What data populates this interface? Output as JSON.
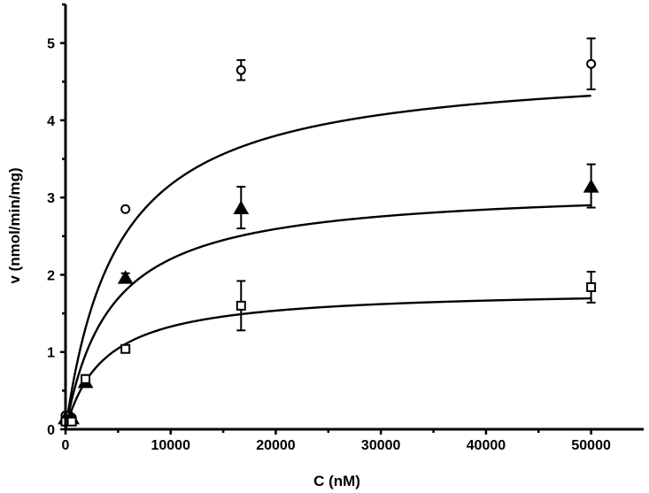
{
  "chart_data": {
    "type": "scatter",
    "title": "",
    "xlabel": "C (nM)",
    "ylabel": "v (nmol/min/mg)",
    "xlim": [
      0,
      55000
    ],
    "ylim": [
      0,
      5.5
    ],
    "x_ticks": [
      0,
      10000,
      20000,
      30000,
      40000,
      50000
    ],
    "y_ticks": [
      0,
      1,
      2,
      3,
      4,
      5
    ],
    "x_tick_labels": [
      "0",
      "10000",
      "20000",
      "30000",
      "40000",
      "50000"
    ],
    "y_tick_labels": [
      "0",
      "1",
      "2",
      "3",
      "4",
      "5"
    ],
    "grid": false,
    "legend": "none",
    "series": [
      {
        "marker": "circle-open",
        "points": [
          {
            "x": 0,
            "y": 0.18,
            "err": 0.0
          },
          {
            "x": 600,
            "y": 0.15,
            "err": 0.0
          },
          {
            "x": 1900,
            "y": 0.65,
            "err": 0.05
          },
          {
            "x": 5700,
            "y": 2.85,
            "err": 0.0
          },
          {
            "x": 16700,
            "y": 4.65,
            "err": 0.13
          },
          {
            "x": 50000,
            "y": 4.73,
            "err": 0.33
          }
        ],
        "fit": {
          "model": "michaelis-menten",
          "vmax": 4.75,
          "km": 5000
        }
      },
      {
        "marker": "triangle-filled",
        "points": [
          {
            "x": 0,
            "y": 0.15,
            "err": 0.0
          },
          {
            "x": 600,
            "y": 0.15,
            "err": 0.0
          },
          {
            "x": 1900,
            "y": 0.62,
            "err": 0.05
          },
          {
            "x": 5700,
            "y": 1.97,
            "err": 0.05
          },
          {
            "x": 16700,
            "y": 2.87,
            "err": 0.27
          },
          {
            "x": 50000,
            "y": 3.15,
            "err": 0.28
          }
        ],
        "fit": {
          "model": "michaelis-menten",
          "vmax": 3.15,
          "km": 4300
        }
      },
      {
        "marker": "square-open",
        "points": [
          {
            "x": 0,
            "y": 0.1,
            "err": 0.0
          },
          {
            "x": 600,
            "y": 0.1,
            "err": 0.0
          },
          {
            "x": 1900,
            "y": 0.65,
            "err": 0.05
          },
          {
            "x": 5700,
            "y": 1.04,
            "err": 0.03
          },
          {
            "x": 16700,
            "y": 1.6,
            "err": 0.32
          },
          {
            "x": 50000,
            "y": 1.84,
            "err": 0.2
          }
        ],
        "fit": {
          "model": "michaelis-menten",
          "vmax": 1.82,
          "km": 3700
        }
      }
    ]
  }
}
